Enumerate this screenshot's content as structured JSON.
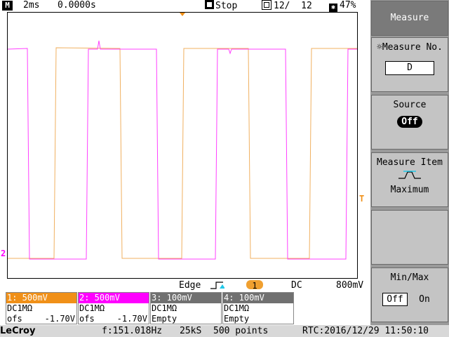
{
  "status": {
    "mode_letter": "M",
    "timebase": "2ms",
    "delay": "0.0000s",
    "run_state": "Stop",
    "memory": "12/  12",
    "battery": "47%"
  },
  "markers": {
    "ch2_ground": "2",
    "trigger_level": "T"
  },
  "trigger": {
    "type": "Edge",
    "source": "1",
    "coupling": "DC",
    "level": "800mV"
  },
  "channels": [
    {
      "header": "1: 500mV",
      "coupling": "DC1MΩ",
      "ofs_label": "ofs",
      "ofs_value": "-1.70V",
      "color": "#f09018"
    },
    {
      "header": "2: 500mV",
      "coupling": "DC1MΩ",
      "ofs_label": "ofs",
      "ofs_value": "-1.70V",
      "color": "#ff00ff"
    },
    {
      "header": "3: 100mV",
      "coupling": "DC1MΩ",
      "ofs_label": "Empty",
      "ofs_value": "",
      "color": "#707070"
    },
    {
      "header": "4: 100mV",
      "coupling": "DC1MΩ",
      "ofs_label": "Empty",
      "ofs_value": "",
      "color": "#707070"
    }
  ],
  "bottom": {
    "brand": "LeCroy",
    "frequency": "f:151.018Hz",
    "sample_rate": "25kS",
    "points": "500 points",
    "rtc": "RTC:2016/12/29 11:50:10"
  },
  "menu": {
    "title": "Measure",
    "measure_no_label": "Measure No.",
    "measure_no_value": "D",
    "source_label": "Source",
    "source_value": "Off",
    "item_label": "Measure Item",
    "item_value": "Maximum",
    "minmax_label": "Min/Max",
    "minmax_off": "Off",
    "minmax_on": "On"
  },
  "colors": {
    "ch1": "#f0b060",
    "ch2": "#ff40ff"
  }
}
